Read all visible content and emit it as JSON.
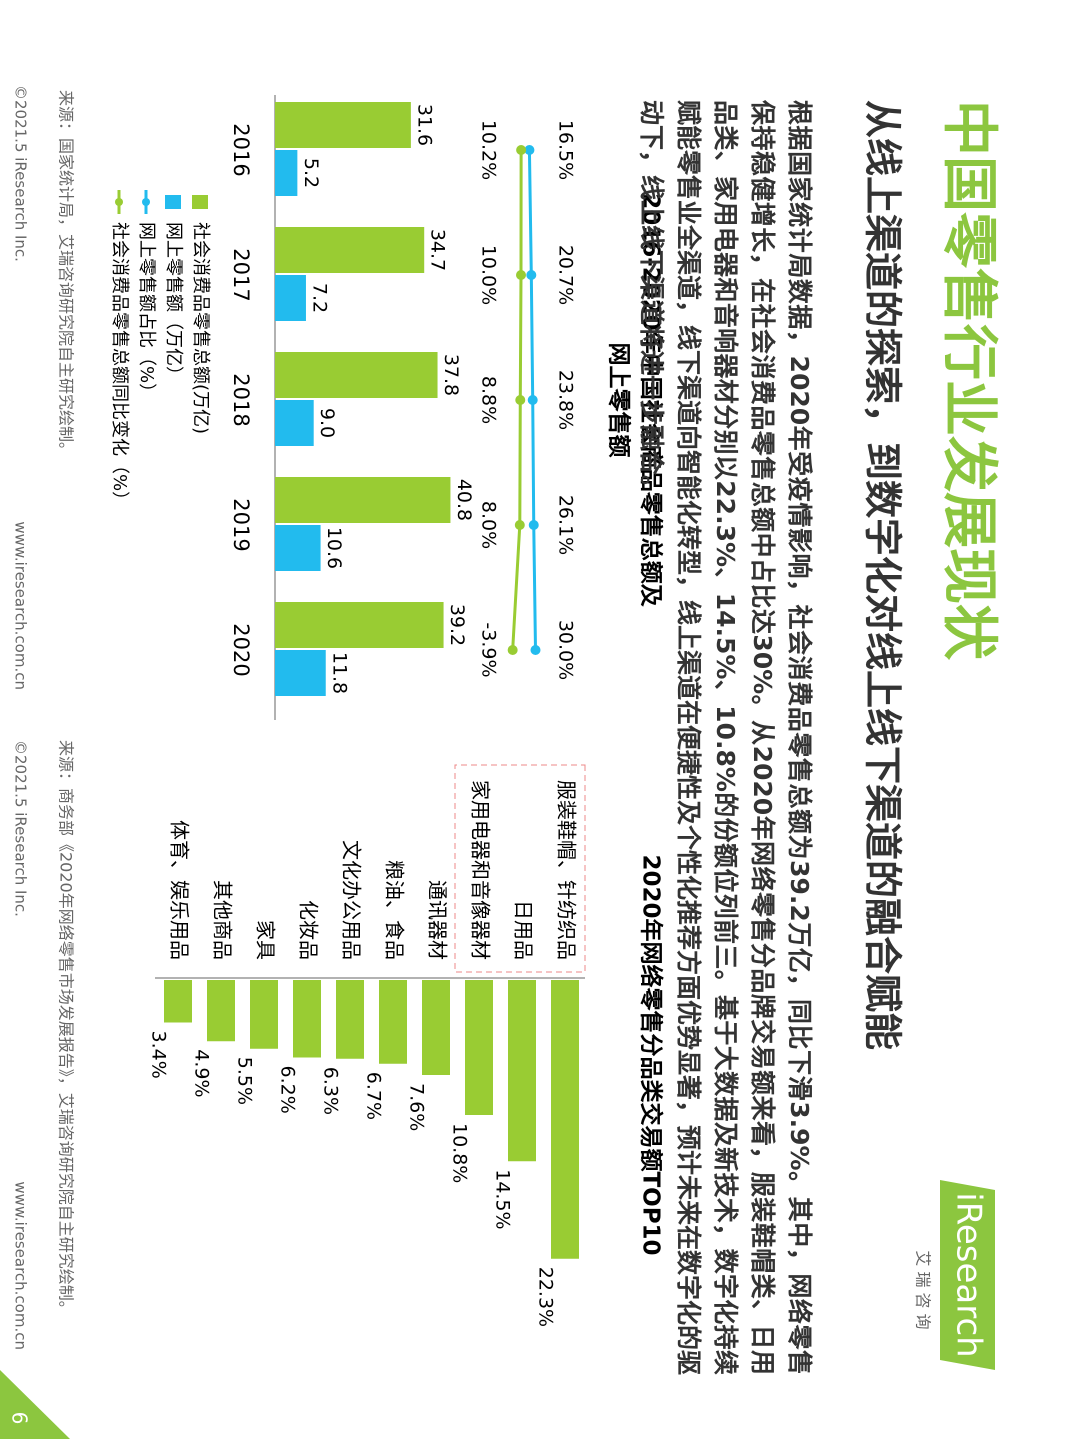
{
  "header": {
    "title": "中国零售行业发展现状",
    "subtitle": "从线上渠道的探索，到数字化对线上线下渠道的融合赋能",
    "logo": "iResearch",
    "logo_sub": "艾 瑞 咨 询"
  },
  "body": "根据国家统计局数据，2020年受疫情影响，社会消费品零售总额为39.2万亿，同比下滑3.9%。其中，网络零售保持稳健增长，在社会消费品零售总额中占比达30%。从2020年网络零售分品牌交易额来看，服装鞋帽类、日用品类、家用电器和音响器材分别以22.3%、14.5%、10.8%的份额位列前三。基于大数据及新技术，数字化持续赋能零售业全渠道，线下渠道向智能化转型，线上渠道在便捷性及个性化推荐方面优势显著，预计未来在数字化的驱动下，线上线下渠道将进一步融合。",
  "chart_data": [
    {
      "type": "bar",
      "title": [
        "2016-2020年中国社会商品零售总额及",
        "网上零售额"
      ],
      "categories": [
        "2016",
        "2017",
        "2018",
        "2019",
        "2020"
      ],
      "series": [
        {
          "name": "社会消费品零售总额(万亿)",
          "kind": "bar",
          "color": "#99cc33",
          "values": [
            31.6,
            34.7,
            37.8,
            40.8,
            39.2
          ],
          "value_labels": [
            "31.6",
            "34.7",
            "37.8",
            "40.8",
            "39.2"
          ]
        },
        {
          "name": "网上零售额（万亿）",
          "kind": "bar",
          "color": "#22bbee",
          "values": [
            5.2,
            7.2,
            9.0,
            10.6,
            11.8
          ],
          "value_labels": [
            "5.2",
            "7.2",
            "9.0",
            "10.6",
            "11.8"
          ]
        },
        {
          "name": "网上零售额占比（%）",
          "kind": "line",
          "color": "#22bbee",
          "values": [
            16.5,
            20.7,
            23.8,
            26.1,
            30.0
          ],
          "value_labels": [
            "16.5%",
            "20.7%",
            "23.8%",
            "26.1%",
            "30.0%"
          ]
        },
        {
          "name": "社会消费品零售总额同比变化（%）",
          "kind": "line",
          "color": "#99cc33",
          "values": [
            10.2,
            10.0,
            8.8,
            8.0,
            -3.9
          ],
          "value_labels": [
            "10.2%",
            "10.0%",
            "8.8%",
            "8.0%",
            "-3.9%"
          ]
        }
      ],
      "source": "来源：国家统计局，艾瑞咨询研究院自主研究绘制。"
    },
    {
      "type": "hbar",
      "title": "2020年网络零售分品类交易额TOP10",
      "color": "#99cc33",
      "categories": [
        "服装鞋帽、针纺织品",
        "日用品",
        "家用电器和音像器材",
        "通讯器材",
        "粮油、食品",
        "文化办公用品",
        "化妆品",
        "家具",
        "其他商品",
        "体育、娱乐用品"
      ],
      "values": [
        22.3,
        14.5,
        10.8,
        7.6,
        6.7,
        6.3,
        6.2,
        5.5,
        4.9,
        3.4
      ],
      "value_labels": [
        "22.3%",
        "14.5%",
        "10.8%",
        "7.6%",
        "6.7%",
        "6.3%",
        "6.2%",
        "5.5%",
        "4.9%",
        "3.4%"
      ],
      "source": "来源：商务部《2020年网络零售市场发展报告》，艾瑞咨询研究院自主研究绘制。"
    }
  ],
  "footer": {
    "copyright": "©2021.5 iResearch Inc.",
    "url": "www.iresearch.com.cn",
    "page": "6"
  }
}
